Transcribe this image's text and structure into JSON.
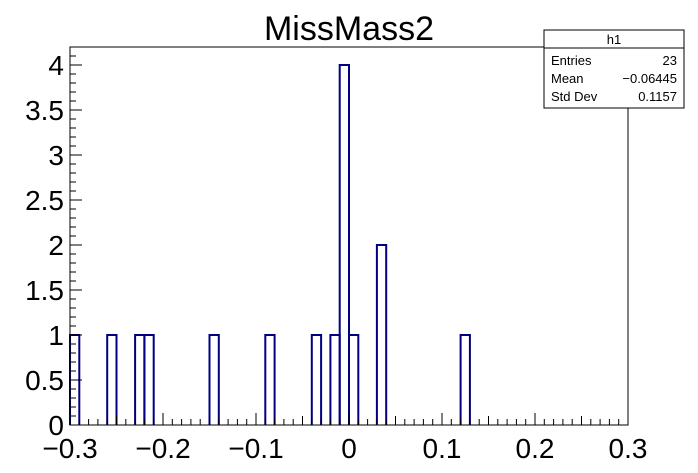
{
  "chart_data": {
    "type": "histogram",
    "title": "MissMass2",
    "xlabel": "",
    "ylabel": "",
    "xlim": [
      -0.3,
      0.3
    ],
    "ylim": [
      0,
      4.2
    ],
    "bin_width": 0.01,
    "x_ticks": [
      -0.3,
      -0.2,
      -0.1,
      0,
      0.1,
      0.2,
      0.3
    ],
    "x_tick_labels": [
      "−0.3",
      "−0.2",
      "−0.1",
      "0",
      "0.1",
      "0.2",
      "0.3"
    ],
    "y_ticks": [
      0,
      0.5,
      1,
      1.5,
      2,
      2.5,
      3,
      3.5,
      4
    ],
    "y_tick_labels": [
      "0",
      "0.5",
      "1",
      "1.5",
      "2",
      "2.5",
      "3",
      "3.5",
      "4"
    ],
    "line_color": "#000080",
    "bins": [
      {
        "x_low": -0.3,
        "x_high": -0.29,
        "value": 1
      },
      {
        "x_low": -0.26,
        "x_high": -0.25,
        "value": 1
      },
      {
        "x_low": -0.23,
        "x_high": -0.22,
        "value": 1
      },
      {
        "x_low": -0.22,
        "x_high": -0.21,
        "value": 1
      },
      {
        "x_low": -0.15,
        "x_high": -0.14,
        "value": 1
      },
      {
        "x_low": -0.09,
        "x_high": -0.08,
        "value": 1
      },
      {
        "x_low": -0.04,
        "x_high": -0.03,
        "value": 1
      },
      {
        "x_low": -0.02,
        "x_high": -0.01,
        "value": 1
      },
      {
        "x_low": -0.01,
        "x_high": 0.0,
        "value": 4
      },
      {
        "x_low": 0.0,
        "x_high": 0.01,
        "value": 1
      },
      {
        "x_low": 0.03,
        "x_high": 0.04,
        "value": 2
      },
      {
        "x_low": 0.12,
        "x_high": 0.13,
        "value": 1
      }
    ]
  },
  "stats_box": {
    "name": "h1",
    "rows": [
      {
        "label": "Entries",
        "value": "23"
      },
      {
        "label": "Mean",
        "value": "−0.06445"
      },
      {
        "label": "Std Dev",
        "value": "0.1157"
      }
    ]
  }
}
